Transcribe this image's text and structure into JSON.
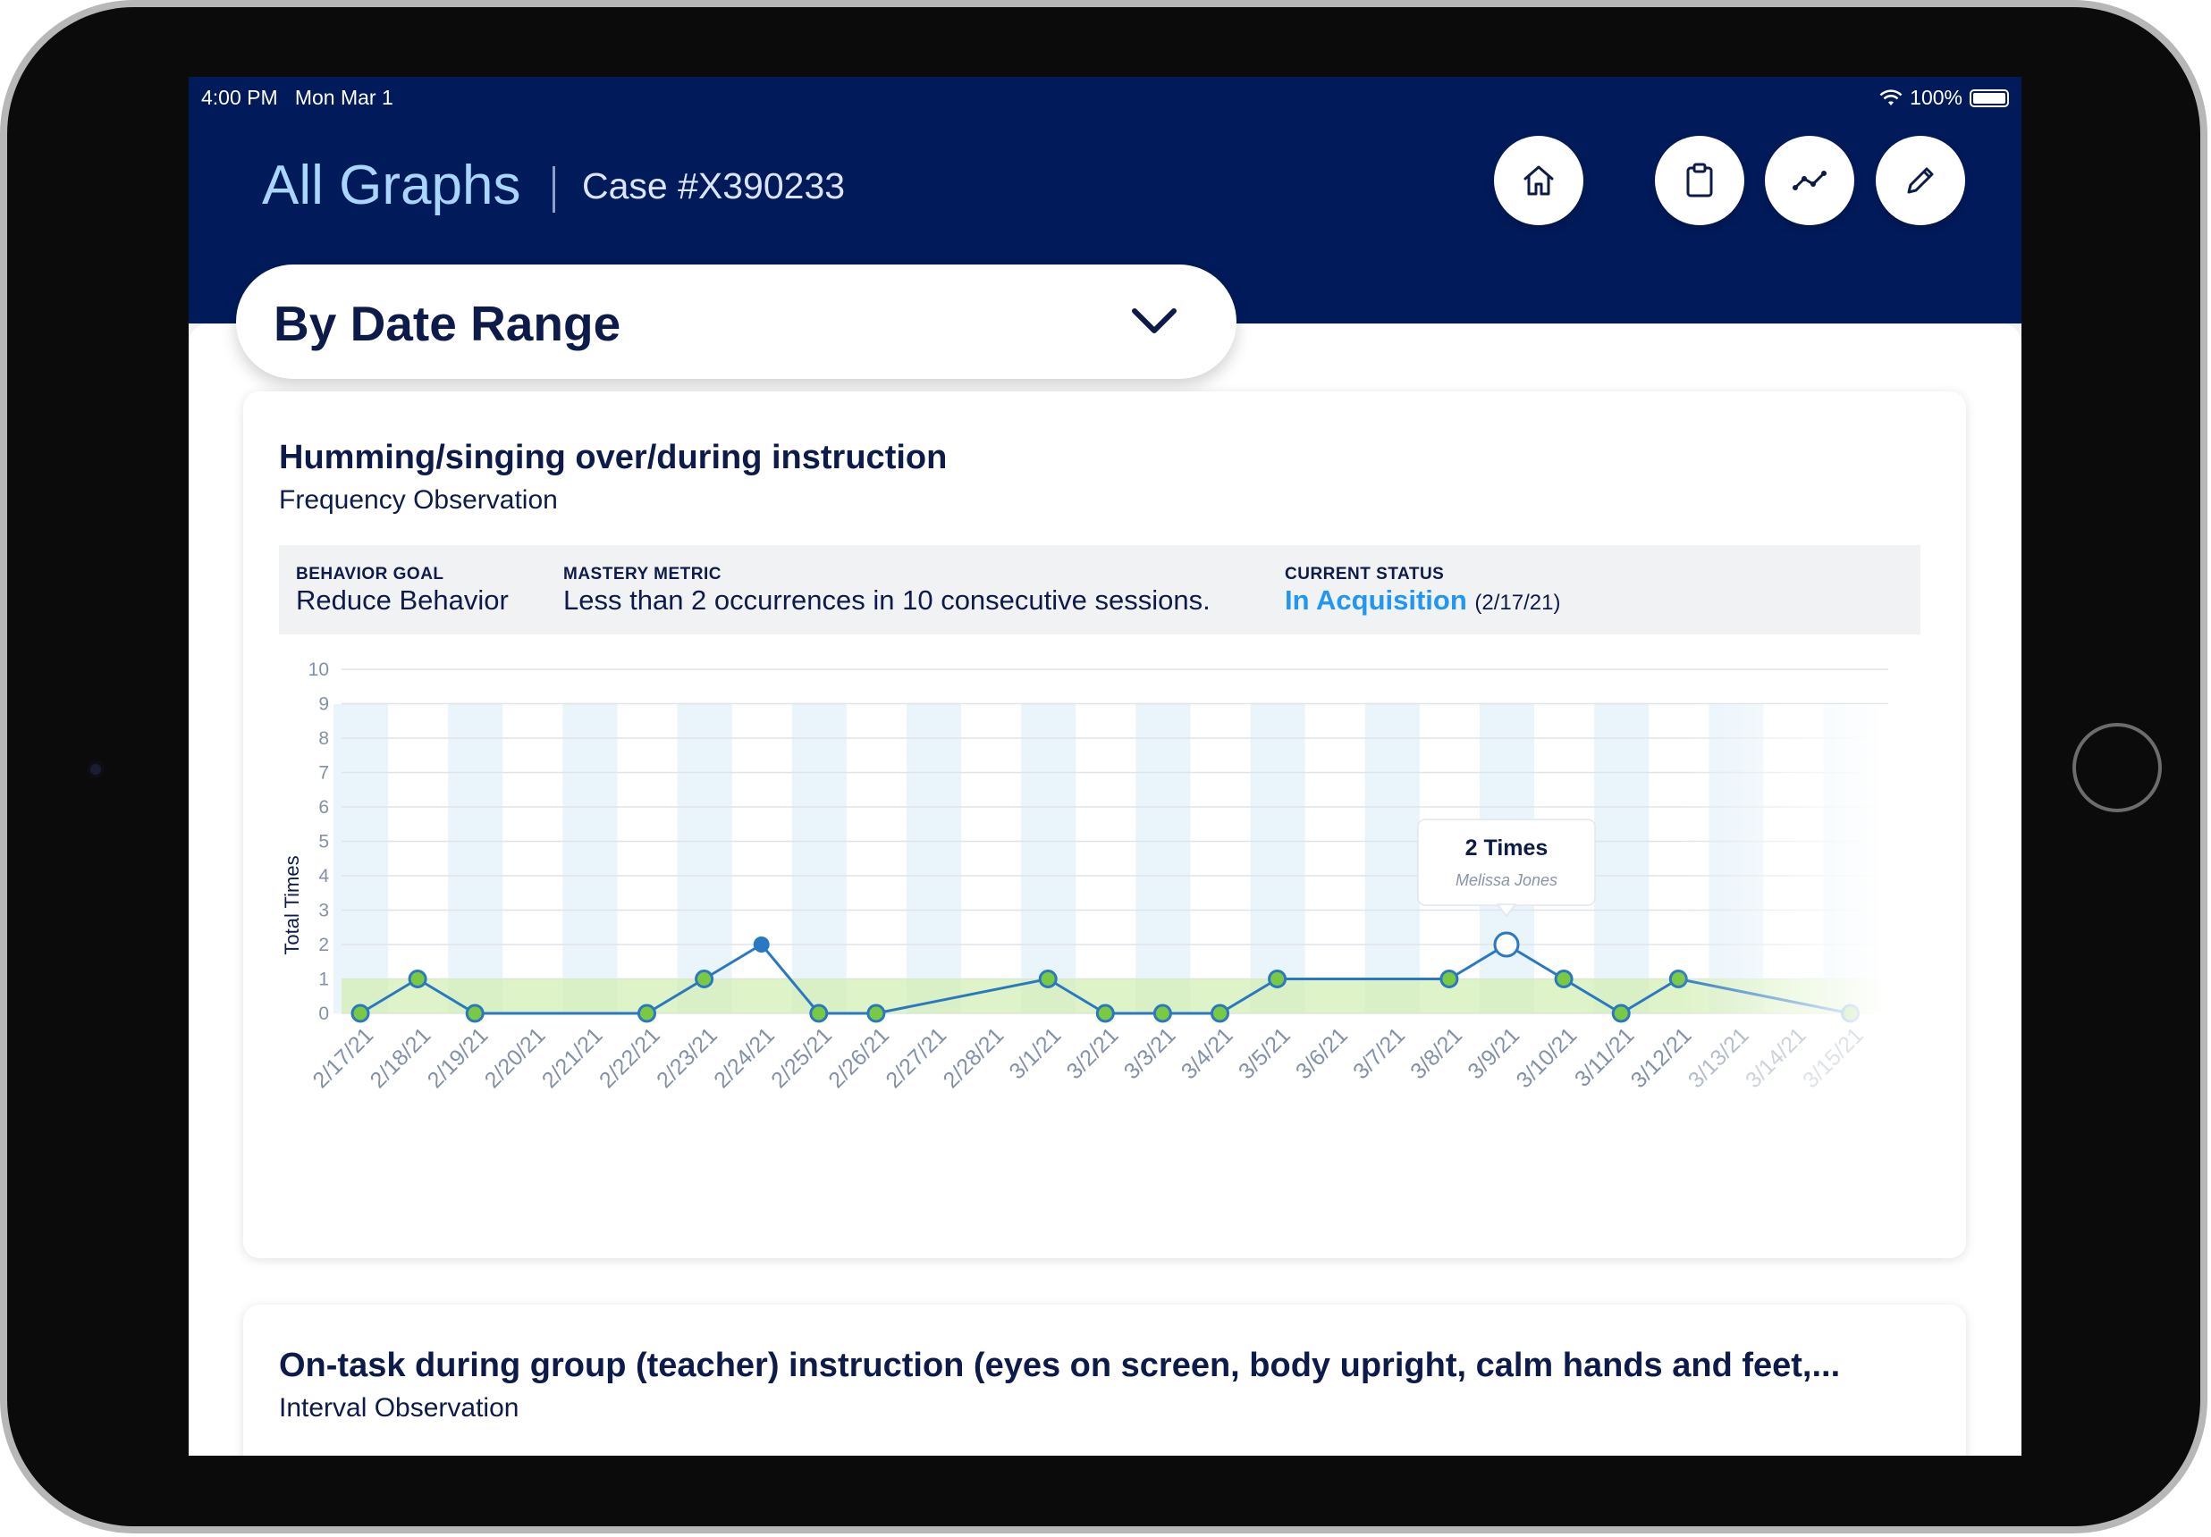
{
  "status_bar": {
    "time": "4:00 PM",
    "date": "Mon Mar 1",
    "battery": "100%"
  },
  "header": {
    "title": "All Graphs",
    "case": "Case #X390233"
  },
  "toolbar": {
    "icons": [
      "home-icon",
      "clipboard-icon",
      "line-chart-icon",
      "pencil-icon"
    ]
  },
  "range_selector": {
    "label": "By Date Range"
  },
  "cards": [
    {
      "title": "Humming/singing over/during instruction",
      "subtitle": "Frequency Observation",
      "behavior_goal_label": "BEHAVIOR GOAL",
      "behavior_goal": "Reduce Behavior",
      "mastery_metric_label": "MASTERY METRIC",
      "mastery_metric": "Less than 2 occurrences in 10 consecutive sessions.",
      "current_status_label": "CURRENT STATUS",
      "current_status": "In Acquisition",
      "current_status_date": "(2/17/21)",
      "tooltip_value": "2 Times",
      "tooltip_name": "Melissa Jones"
    },
    {
      "title": "On-task during group (teacher) instruction (eyes on screen, body upright, calm hands and feet,...",
      "subtitle": "Interval Observation"
    }
  ],
  "colors": {
    "navy": "#001a5a",
    "accent": "#2196f3",
    "point_green": "#7ac943",
    "line_blue": "#2b78c2",
    "target_band": "#dff3c9"
  },
  "chart_data": {
    "type": "line",
    "ylabel": "Total Times",
    "ylim": [
      0,
      10
    ],
    "yticks": [
      0,
      1,
      2,
      3,
      4,
      5,
      6,
      7,
      8,
      9,
      10
    ],
    "target_band": [
      0,
      1
    ],
    "categories": [
      "2/17/21",
      "2/18/21",
      "2/19/21",
      "2/20/21",
      "2/21/21",
      "2/22/21",
      "2/23/21",
      "2/24/21",
      "2/25/21",
      "2/26/21",
      "2/27/21",
      "2/28/21",
      "3/1/21",
      "3/2/21",
      "3/3/21",
      "3/4/21",
      "3/5/21",
      "3/6/21",
      "3/7/21",
      "3/8/21",
      "3/9/21",
      "3/10/21",
      "3/11/21",
      "3/12/21",
      "3/13/21",
      "3/14/21",
      "3/15/21"
    ],
    "series": [
      {
        "values": [
          0,
          1,
          0,
          null,
          null,
          0,
          1,
          2,
          0,
          0,
          null,
          null,
          1,
          0,
          0,
          0,
          1,
          null,
          null,
          1,
          2,
          1,
          0,
          1,
          null,
          null,
          0
        ]
      }
    ],
    "highlighted_point": "3/9/21"
  }
}
